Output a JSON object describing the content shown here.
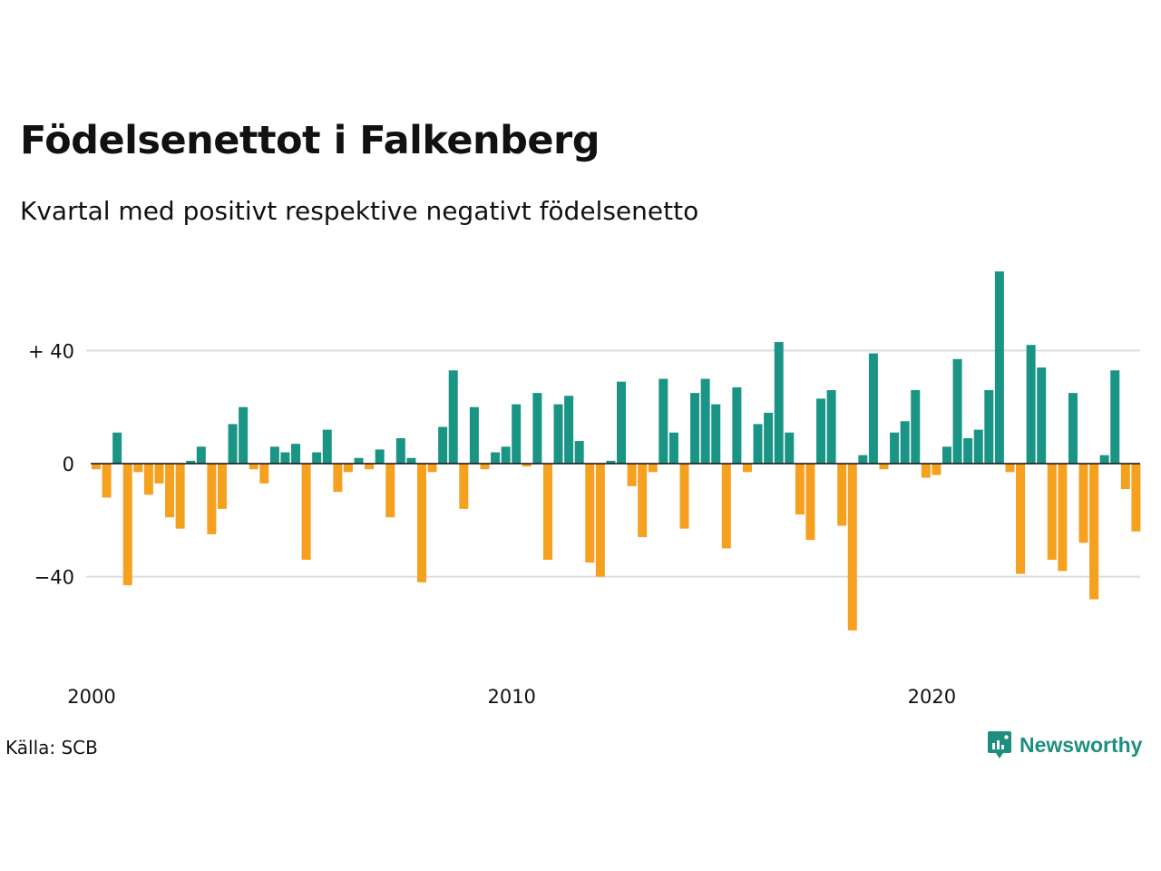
{
  "title": "Födelsenettot i Falkenberg",
  "subtitle": "Kvartal med positivt respektive negativt födelsenetto",
  "source": "Källa: SCB",
  "brand": "Newsworthy",
  "colors": {
    "positive": "#1a9484",
    "negative": "#f5a01e",
    "grid": "#dddddd",
    "zero": "#111111",
    "brand": "#1d8f7f"
  },
  "chart_data": {
    "type": "bar",
    "title": "Födelsenettot i Falkenberg",
    "subtitle": "Kvartal med positivt respektive negativt födelsenetto",
    "x_start_year": 2000,
    "x_labels": [
      "2000",
      "2010",
      "2020"
    ],
    "y_ticks": [
      40,
      0,
      -40
    ],
    "y_tick_labels": [
      "+ 40",
      "0",
      "−40"
    ],
    "ylim": [
      -68,
      72
    ],
    "grid": true,
    "values": [
      -2,
      -12,
      11,
      -43,
      -3,
      -11,
      -7,
      -19,
      -23,
      1,
      6,
      -25,
      -16,
      14,
      20,
      -2,
      -7,
      6,
      4,
      7,
      -34,
      4,
      12,
      -10,
      -3,
      2,
      -2,
      5,
      -19,
      9,
      2,
      -42,
      -3,
      13,
      33,
      -16,
      20,
      -2,
      4,
      6,
      21,
      -1,
      25,
      -34,
      21,
      24,
      8,
      -35,
      -40,
      1,
      29,
      -8,
      -26,
      -3,
      30,
      11,
      -23,
      25,
      30,
      21,
      -30,
      27,
      -3,
      14,
      18,
      43,
      11,
      -18,
      -27,
      23,
      26,
      -22,
      -59,
      3,
      39,
      -2,
      11,
      15,
      26,
      -5,
      -4,
      6,
      37,
      9,
      12,
      26,
      68,
      -3,
      -39,
      42,
      34,
      -34,
      -38,
      25,
      -28,
      -48,
      3,
      33,
      -9,
      -24
    ]
  }
}
